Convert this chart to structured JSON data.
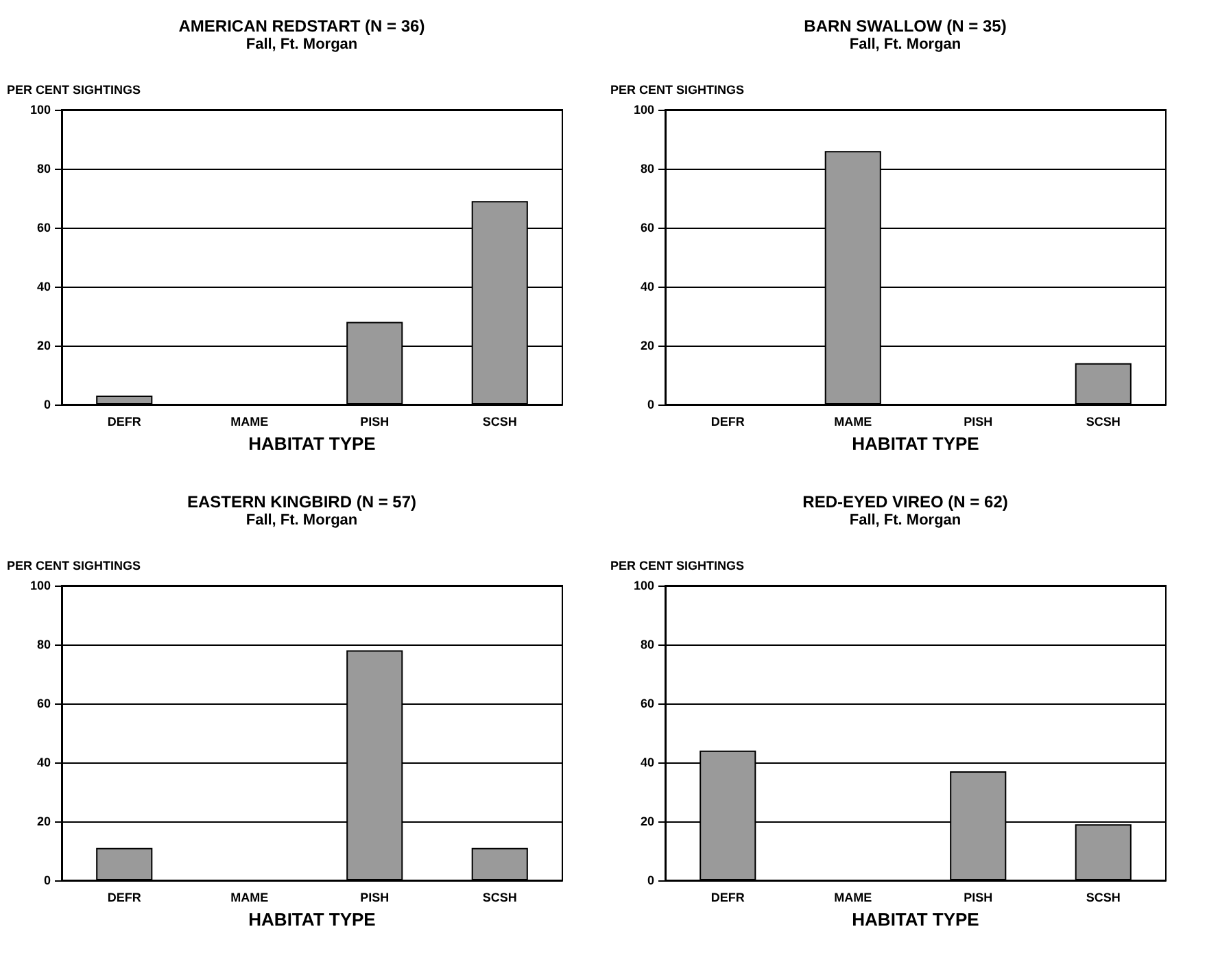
{
  "chart_data": [
    {
      "type": "bar",
      "title": "AMERICAN REDSTART (N = 36)",
      "subtitle": "Fall, Ft. Morgan",
      "xlabel": "HABITAT TYPE",
      "ylabel": "PER CENT SIGHTINGS",
      "categories": [
        "DEFR",
        "MAME",
        "PISH",
        "SCSH"
      ],
      "values": [
        3,
        0,
        28,
        69
      ],
      "color": "#9a9a9a",
      "ylim": [
        0,
        100
      ],
      "yticks": [
        0,
        20,
        40,
        60,
        80,
        100
      ],
      "grid": "y"
    },
    {
      "type": "bar",
      "title": "BARN SWALLOW (N = 35)",
      "subtitle": "Fall, Ft. Morgan",
      "xlabel": "HABITAT TYPE",
      "ylabel": "PER CENT SIGHTINGS",
      "categories": [
        "DEFR",
        "MAME",
        "PISH",
        "SCSH"
      ],
      "values": [
        0,
        86,
        0,
        14
      ],
      "color": "#9a9a9a",
      "ylim": [
        0,
        100
      ],
      "yticks": [
        0,
        20,
        40,
        60,
        80,
        100
      ],
      "grid": "y"
    },
    {
      "type": "bar",
      "title": "EASTERN KINGBIRD (N = 57)",
      "subtitle": "Fall, Ft. Morgan",
      "xlabel": "HABITAT TYPE",
      "ylabel": "PER CENT SIGHTINGS",
      "categories": [
        "DEFR",
        "MAME",
        "PISH",
        "SCSH"
      ],
      "values": [
        11,
        0,
        78,
        11
      ],
      "color": "#9a9a9a",
      "ylim": [
        0,
        100
      ],
      "yticks": [
        0,
        20,
        40,
        60,
        80,
        100
      ],
      "grid": "y"
    },
    {
      "type": "bar",
      "title": "RED-EYED VIREO (N = 62)",
      "subtitle": "Fall, Ft. Morgan",
      "xlabel": "HABITAT TYPE",
      "ylabel": "PER CENT SIGHTINGS",
      "categories": [
        "DEFR",
        "MAME",
        "PISH",
        "SCSH"
      ],
      "values": [
        44,
        0,
        37,
        19
      ],
      "color": "#9a9a9a",
      "ylim": [
        0,
        100
      ],
      "yticks": [
        0,
        20,
        40,
        60,
        80,
        100
      ],
      "grid": "y"
    }
  ]
}
